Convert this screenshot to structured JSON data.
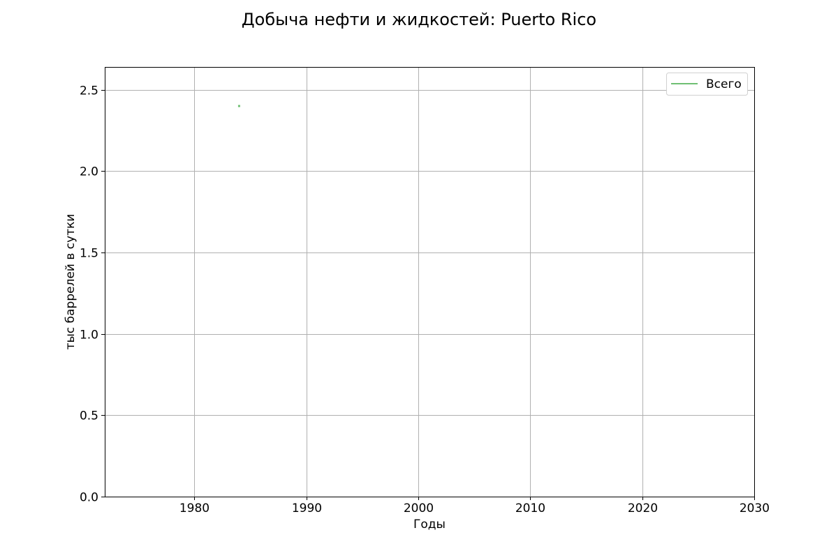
{
  "chart_data": {
    "type": "line",
    "title": "Добыча нефти и жидкостей: Puerto Rico",
    "xlabel": "Годы",
    "ylabel": "тыс баррелей в сутки",
    "xlim": [
      1972,
      2030
    ],
    "ylim": [
      0,
      2.64
    ],
    "xticks": [
      1980,
      1990,
      2000,
      2010,
      2020,
      2030
    ],
    "yticks": [
      0.0,
      0.5,
      1.0,
      1.5,
      2.0,
      2.5
    ],
    "xtick_labels": [
      "1980",
      "1990",
      "2000",
      "2010",
      "2020",
      "2030"
    ],
    "ytick_labels": [
      "0.0",
      "0.5",
      "1.0",
      "1.5",
      "2.0",
      "2.5"
    ],
    "grid": true,
    "legend_position": "top-right",
    "series": [
      {
        "name": "Всего",
        "color": "#6fbf73",
        "x": [
          1984
        ],
        "y": [
          2.4
        ]
      }
    ]
  }
}
